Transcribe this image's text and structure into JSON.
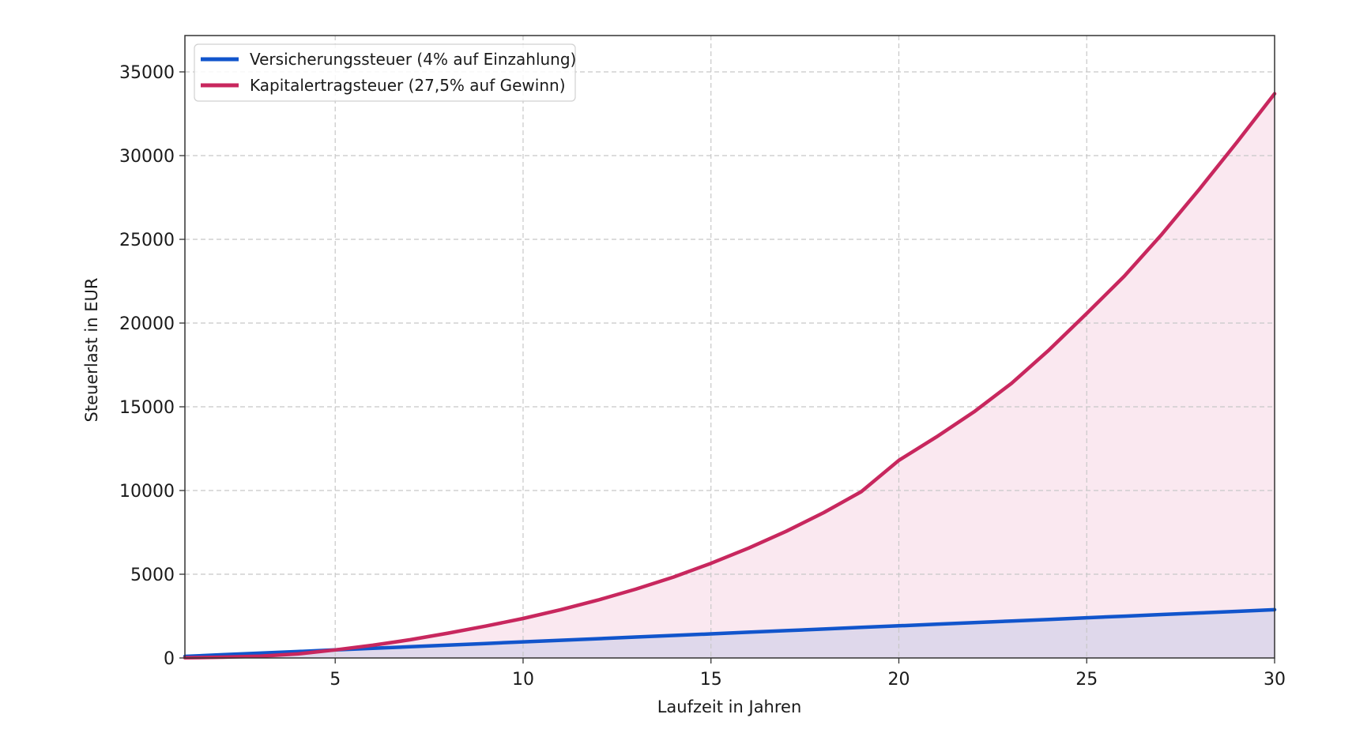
{
  "chart_data": {
    "type": "line",
    "title": "",
    "xlabel": "Laufzeit in Jahren",
    "ylabel": "Steuerlast in EUR",
    "xlim": [
      1,
      30
    ],
    "ylim": [
      0,
      37170
    ],
    "xticks": [
      5,
      10,
      15,
      20,
      25,
      30
    ],
    "yticks": [
      0,
      5000,
      10000,
      15000,
      20000,
      25000,
      30000,
      35000
    ],
    "grid": true,
    "legend_position": "upper left",
    "x": [
      1,
      2,
      3,
      4,
      5,
      6,
      7,
      8,
      9,
      10,
      11,
      12,
      13,
      14,
      15,
      16,
      17,
      18,
      19,
      20,
      21,
      22,
      23,
      24,
      25,
      26,
      27,
      28,
      29,
      30
    ],
    "series": [
      {
        "name": "Versicherungssteuer (4% auf Einzahlung)",
        "color": "#1155cc",
        "fill": "#dcd6ea",
        "values": [
          96,
          192,
          288,
          384,
          480,
          576,
          672,
          768,
          864,
          960,
          1056,
          1152,
          1248,
          1344,
          1440,
          1536,
          1632,
          1728,
          1824,
          1920,
          2016,
          2112,
          2208,
          2304,
          2400,
          2496,
          2592,
          2688,
          2784,
          2880
        ]
      },
      {
        "name": "Kapitalertragsteuer (27,5% auf Gewinn)",
        "color": "#c8275e",
        "fill": "#f9e6ee",
        "values": [
          10,
          45,
          110,
          240,
          480,
          760,
          1090,
          1480,
          1900,
          2360,
          2880,
          3460,
          4110,
          4830,
          5650,
          6560,
          7560,
          8680,
          9930,
          11800,
          13200,
          14700,
          16400,
          18400,
          20570,
          22800,
          25300,
          28000,
          30800,
          33700
        ]
      }
    ]
  },
  "legend": {
    "items": [
      {
        "label": "Versicherungssteuer (4% auf Einzahlung)",
        "color": "#1155cc"
      },
      {
        "label": "Kapitalertragsteuer (27,5% auf Gewinn)",
        "color": "#c8275e"
      }
    ]
  },
  "axes": {
    "x_label": "Laufzeit in Jahren",
    "y_label": "Steuerlast in EUR",
    "x_tick_labels": [
      "5",
      "10",
      "15",
      "20",
      "25",
      "30"
    ],
    "y_tick_labels": [
      "0",
      "5000",
      "10000",
      "15000",
      "20000",
      "25000",
      "30000",
      "35000"
    ]
  },
  "colors": {
    "grid": "#c8c8c8",
    "frame": "#333333"
  }
}
